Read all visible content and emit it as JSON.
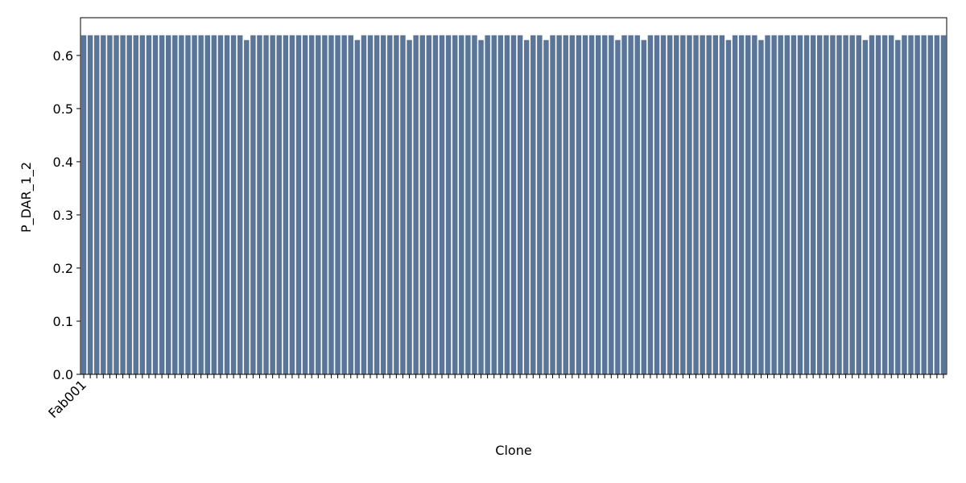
{
  "chart_data": {
    "type": "bar",
    "xlabel": "Clone",
    "ylabel": "P_DAR_1_2",
    "color": "#5a7597",
    "categories": [
      "Fab001",
      null,
      null,
      null,
      null,
      null,
      null,
      null,
      null,
      null,
      null,
      null,
      null,
      null,
      null,
      null,
      null,
      null,
      null,
      null,
      null,
      null,
      null,
      null,
      null,
      null,
      null,
      null,
      null,
      null,
      null,
      null,
      null,
      null,
      null,
      null,
      null,
      null,
      null,
      null,
      null,
      null,
      null,
      null,
      null,
      null,
      null,
      null,
      null,
      null,
      null,
      null,
      null,
      null,
      null,
      null,
      null,
      null,
      null,
      null,
      null,
      null,
      null,
      null,
      null,
      null,
      null,
      null,
      null,
      null,
      null,
      null,
      null,
      null,
      null,
      null,
      null,
      null,
      null,
      null,
      null,
      null,
      null,
      null,
      null,
      null,
      null,
      null,
      null,
      null,
      null,
      null,
      null,
      null,
      null,
      null,
      null,
      null,
      null,
      null,
      null,
      null,
      null,
      null,
      null,
      null,
      null,
      null,
      null,
      null,
      null,
      null,
      null,
      null,
      null,
      null,
      null,
      null,
      null,
      null,
      null,
      null,
      null,
      null,
      null,
      null,
      null,
      null,
      null,
      null,
      null,
      null,
      null
    ],
    "values": [
      0.638,
      0.638,
      0.638,
      0.638,
      0.638,
      0.638,
      0.638,
      0.638,
      0.638,
      0.638,
      0.638,
      0.638,
      0.638,
      0.638,
      0.638,
      0.638,
      0.638,
      0.638,
      0.638,
      0.638,
      0.638,
      0.638,
      0.638,
      0.638,
      0.638,
      0.629,
      0.638,
      0.638,
      0.638,
      0.638,
      0.638,
      0.638,
      0.638,
      0.638,
      0.638,
      0.638,
      0.638,
      0.638,
      0.638,
      0.638,
      0.638,
      0.638,
      0.629,
      0.638,
      0.638,
      0.638,
      0.638,
      0.638,
      0.638,
      0.638,
      0.629,
      0.638,
      0.638,
      0.638,
      0.638,
      0.638,
      0.638,
      0.638,
      0.638,
      0.638,
      0.638,
      0.629,
      0.638,
      0.638,
      0.638,
      0.638,
      0.638,
      0.638,
      0.629,
      0.638,
      0.638,
      0.629,
      0.638,
      0.638,
      0.638,
      0.638,
      0.638,
      0.638,
      0.638,
      0.638,
      0.638,
      0.638,
      0.629,
      0.638,
      0.638,
      0.638,
      0.629,
      0.638,
      0.638,
      0.638,
      0.638,
      0.638,
      0.638,
      0.638,
      0.638,
      0.638,
      0.638,
      0.638,
      0.638,
      0.629,
      0.638,
      0.638,
      0.638,
      0.638,
      0.629,
      0.638,
      0.638,
      0.638,
      0.638,
      0.638,
      0.638,
      0.638,
      0.638,
      0.638,
      0.638,
      0.638,
      0.638,
      0.638,
      0.638,
      0.638,
      0.629,
      0.638,
      0.638,
      0.638,
      0.638,
      0.629,
      0.638,
      0.638,
      0.638,
      0.638,
      0.638,
      0.638,
      0.638
    ],
    "ylim": [
      0,
      0.671
    ],
    "yticks": [
      {
        "value": 0,
        "label": "0.0"
      },
      0.1,
      0.2,
      0.3,
      0.4,
      0.5,
      0.6
    ]
  }
}
